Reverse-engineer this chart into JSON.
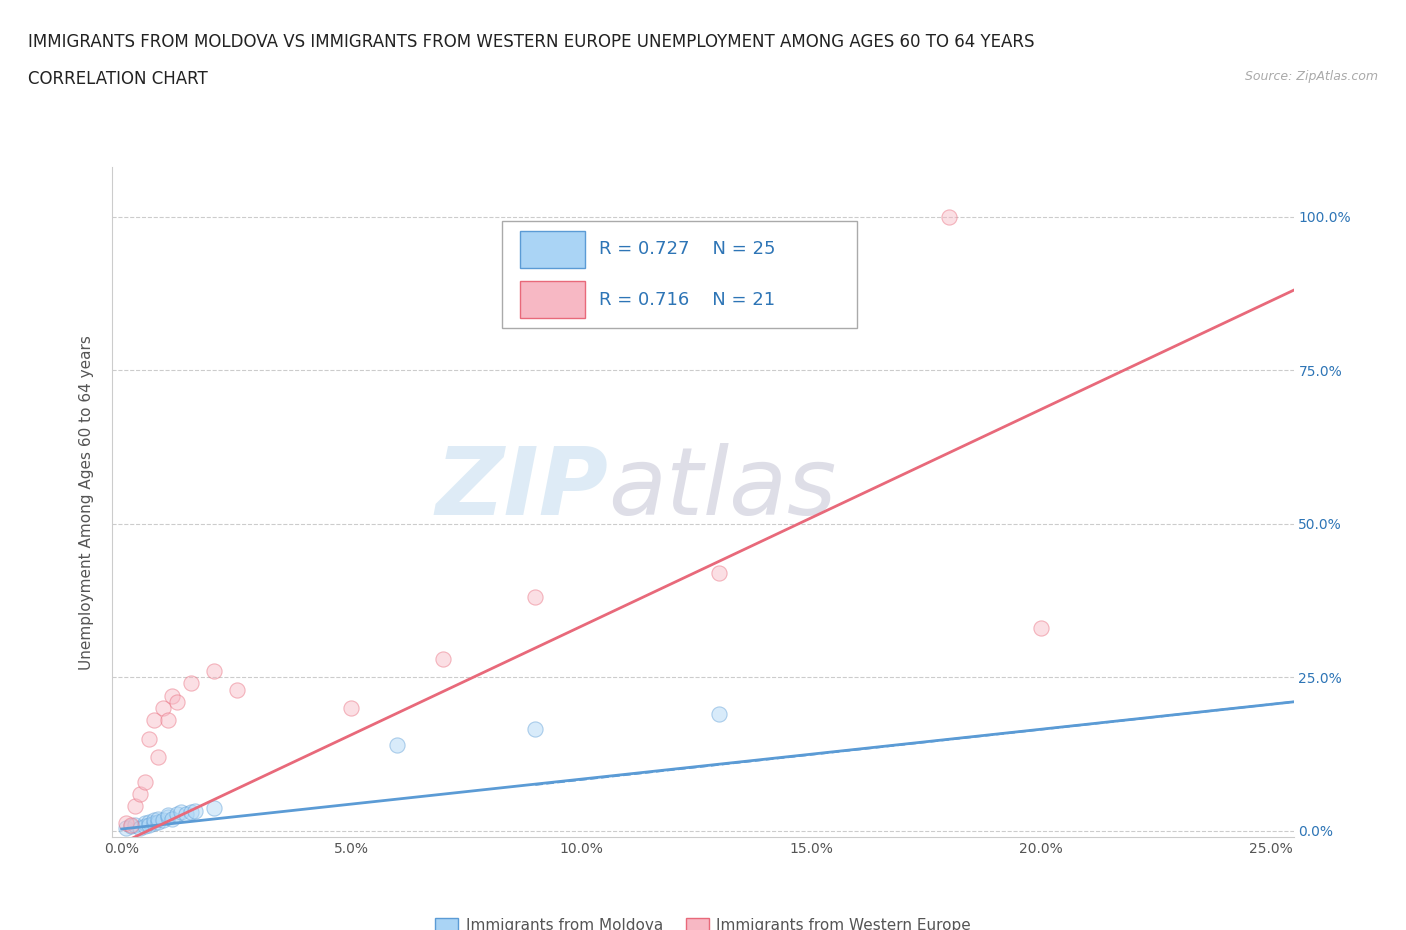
{
  "title_line1": "IMMIGRANTS FROM MOLDOVA VS IMMIGRANTS FROM WESTERN EUROPE UNEMPLOYMENT AMONG AGES 60 TO 64 YEARS",
  "title_line2": "CORRELATION CHART",
  "source_text": "Source: ZipAtlas.com",
  "ylabel": "Unemployment Among Ages 60 to 64 years",
  "xlim": [
    -0.002,
    0.255
  ],
  "ylim": [
    -0.01,
    1.08
  ],
  "xtick_labels": [
    "0.0%",
    "5.0%",
    "10.0%",
    "15.0%",
    "20.0%",
    "25.0%"
  ],
  "xtick_vals": [
    0.0,
    0.05,
    0.1,
    0.15,
    0.2,
    0.25
  ],
  "ytick_labels": [
    "0.0%",
    "25.0%",
    "50.0%",
    "75.0%",
    "100.0%"
  ],
  "ytick_vals": [
    0.0,
    0.25,
    0.5,
    0.75,
    1.0
  ],
  "moldova_color": "#aad4f5",
  "moldova_edge": "#5b9bd5",
  "western_color": "#f7b8c4",
  "western_edge": "#e8697a",
  "moldova_R": 0.727,
  "moldova_N": 25,
  "western_R": 0.716,
  "western_N": 21,
  "moldova_scatter_x": [
    0.001,
    0.002,
    0.003,
    0.004,
    0.005,
    0.005,
    0.006,
    0.006,
    0.007,
    0.007,
    0.008,
    0.008,
    0.009,
    0.01,
    0.01,
    0.011,
    0.012,
    0.013,
    0.014,
    0.015,
    0.016,
    0.02,
    0.06,
    0.09,
    0.13
  ],
  "moldova_scatter_y": [
    0.005,
    0.008,
    0.01,
    0.005,
    0.012,
    0.008,
    0.015,
    0.01,
    0.012,
    0.018,
    0.015,
    0.02,
    0.018,
    0.022,
    0.025,
    0.02,
    0.028,
    0.03,
    0.028,
    0.03,
    0.032,
    0.038,
    0.14,
    0.165,
    0.19
  ],
  "western_scatter_x": [
    0.001,
    0.002,
    0.003,
    0.004,
    0.005,
    0.006,
    0.007,
    0.008,
    0.009,
    0.01,
    0.011,
    0.012,
    0.015,
    0.02,
    0.025,
    0.05,
    0.07,
    0.09,
    0.13,
    0.18,
    0.2
  ],
  "western_scatter_y": [
    0.012,
    0.01,
    0.04,
    0.06,
    0.08,
    0.15,
    0.18,
    0.12,
    0.2,
    0.18,
    0.22,
    0.21,
    0.24,
    0.26,
    0.23,
    0.2,
    0.28,
    0.38,
    0.42,
    1.0,
    0.33
  ],
  "moldova_trend_x": [
    0.0,
    0.255
  ],
  "moldova_trend_y": [
    0.003,
    0.21
  ],
  "western_trend_x": [
    0.0,
    0.255
  ],
  "western_trend_y": [
    -0.02,
    0.88
  ],
  "watermark_zip": "ZIP",
  "watermark_atlas": "atlas",
  "grid_color": "#cccccc",
  "background_color": "#ffffff",
  "legend_r_color": "#2e75b6",
  "marker_size": 120,
  "marker_alpha": 0.45,
  "bottom_legend_moldova": "Immigrants from Moldova",
  "bottom_legend_western": "Immigrants from Western Europe",
  "title_fontsize": 12,
  "subtitle_fontsize": 12
}
